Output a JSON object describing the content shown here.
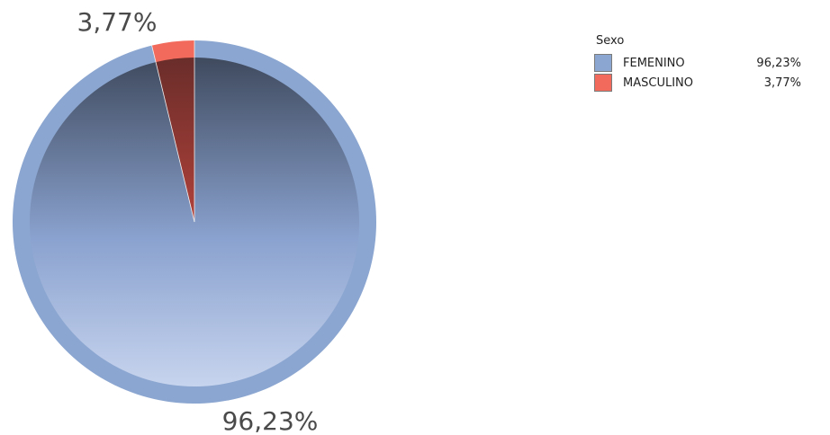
{
  "chart_data": {
    "type": "pie",
    "legend_title": "Sexo",
    "legend_position": "top-right",
    "series": [
      {
        "name": "FEMENINO",
        "value": 96.23,
        "label": "96,23%",
        "color": "#8ba6d0"
      },
      {
        "name": "MASCULINO",
        "value": 3.77,
        "label": "3,77%",
        "color": "#f26a5b"
      }
    ]
  }
}
